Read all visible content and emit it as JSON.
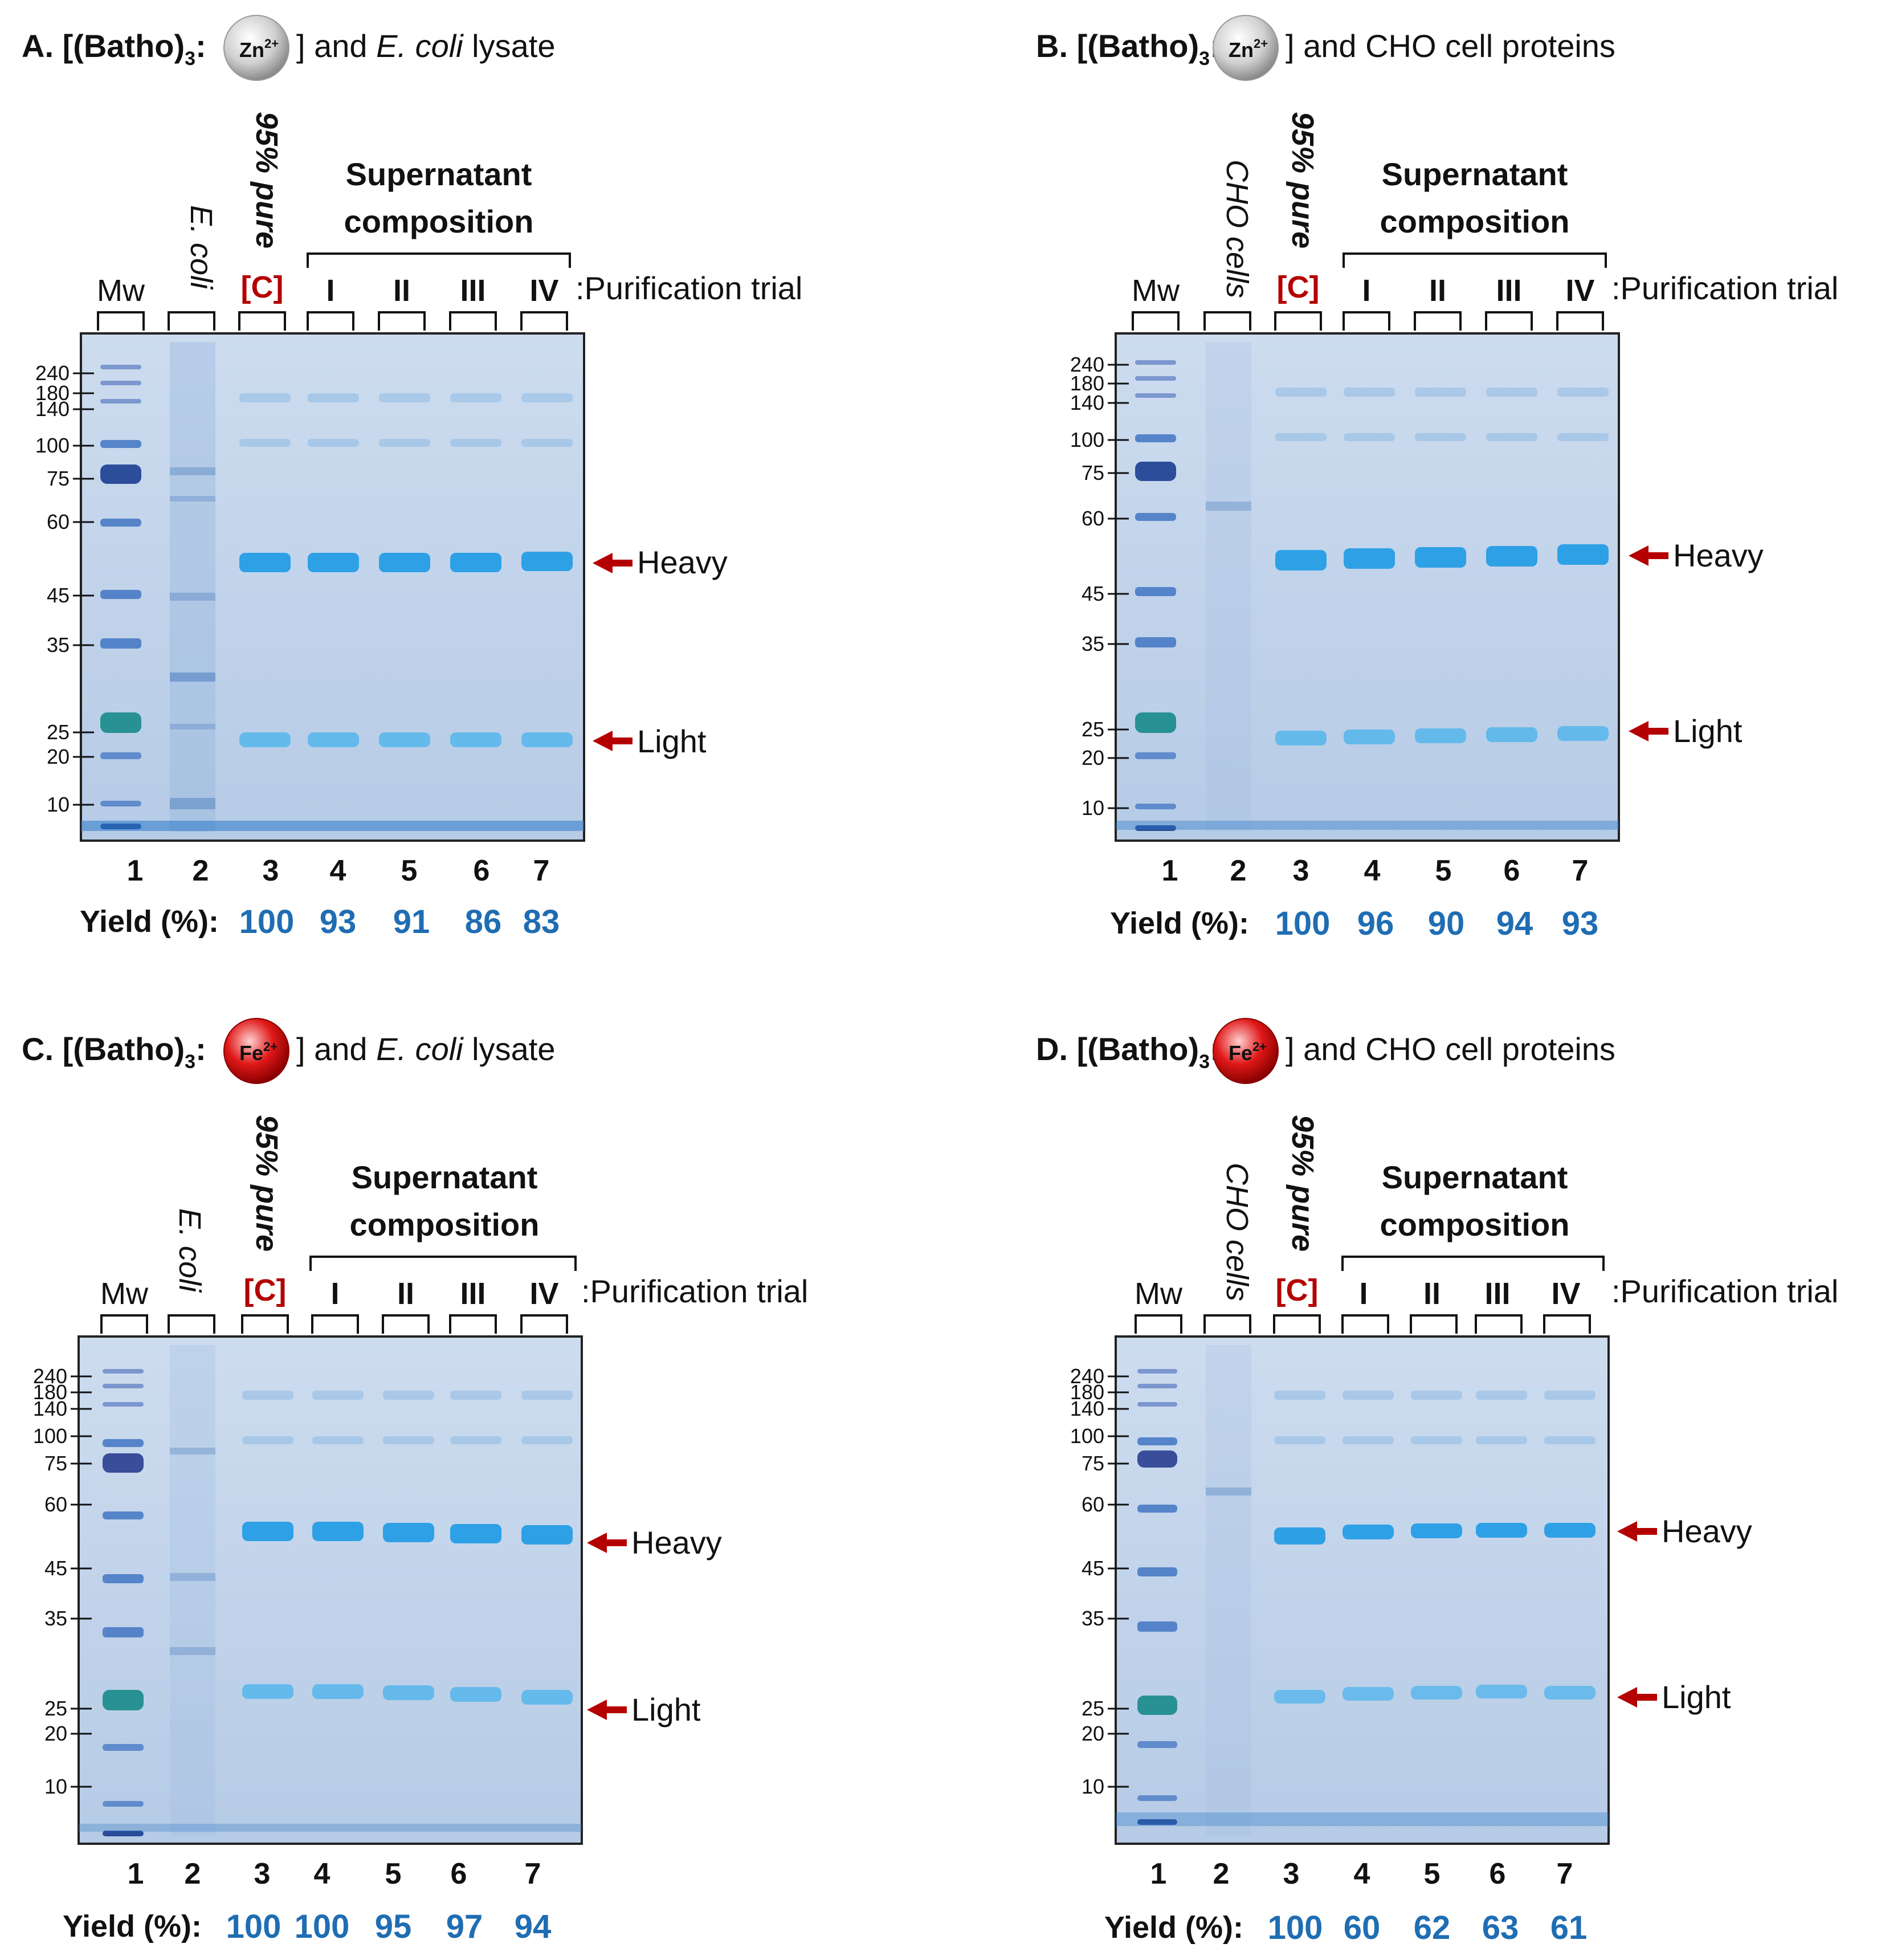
{
  "panels": [
    {
      "letter": "A.",
      "complex_prefix": "[(Batho)",
      "complex_sub": "3",
      "complex_colon": ":",
      "metal": "Zn",
      "metal_charge": "2+",
      "after_pre": "]  and ",
      "after_ital": "E. coli",
      "after_post": " lysate",
      "sample_label": "E. coli",
      "yields": [
        "100",
        "93",
        "91",
        "86",
        "83"
      ]
    },
    {
      "letter": "B.",
      "complex_prefix": "[(Batho)",
      "complex_sub": "3",
      "complex_colon": ":",
      "metal": "Zn",
      "metal_charge": "2+",
      "after_pre": "] and CHO cell proteins",
      "after_ital": "",
      "after_post": "",
      "sample_label": "CHO cells",
      "yields": [
        "100",
        "96",
        "90",
        "94",
        "93"
      ]
    },
    {
      "letter": "C.",
      "complex_prefix": "[(Batho)",
      "complex_sub": "3",
      "complex_colon": ":",
      "metal": "Fe",
      "metal_charge": "2+",
      "after_pre": "]  and ",
      "after_ital": "E. coli",
      "after_post": " lysate",
      "sample_label": "E. coli",
      "yields": [
        "100",
        "100",
        "95",
        "97",
        "94"
      ]
    },
    {
      "letter": "D.",
      "complex_prefix": "[(Batho)",
      "complex_sub": "3",
      "complex_colon": ":",
      "metal": "Fe",
      "metal_charge": "2+",
      "after_pre": "] and CHO cell proteins",
      "after_ital": "",
      "after_post": "",
      "sample_label": "CHO cells",
      "yields": [
        "100",
        "60",
        "62",
        "63",
        "61"
      ]
    }
  ],
  "common": {
    "mw_label": "Mw",
    "pure_label": "95% pure",
    "control_label": "[C]",
    "trials": [
      "I",
      "II",
      "III",
      "IV"
    ],
    "trial_caption": ":Purification trial",
    "supernatant_line1": "Supernatant",
    "supernatant_line2": "composition",
    "markers": [
      "240",
      "180",
      "140",
      "100",
      "75",
      "60",
      "45",
      "35",
      "25",
      "20",
      "10"
    ],
    "lanes": [
      "1",
      "2",
      "3",
      "4",
      "5",
      "6",
      "7"
    ],
    "yield_label": "Yield (%):",
    "heavy_label": "Heavy",
    "light_label": "Light"
  },
  "colors": {
    "gel": "#c2d4e8",
    "band": "#3aa6e6",
    "arrow": "#b40000",
    "yield": "#1f6db3",
    "zn_ball": "#d0d0d0",
    "fe_ball": "#e01818"
  }
}
